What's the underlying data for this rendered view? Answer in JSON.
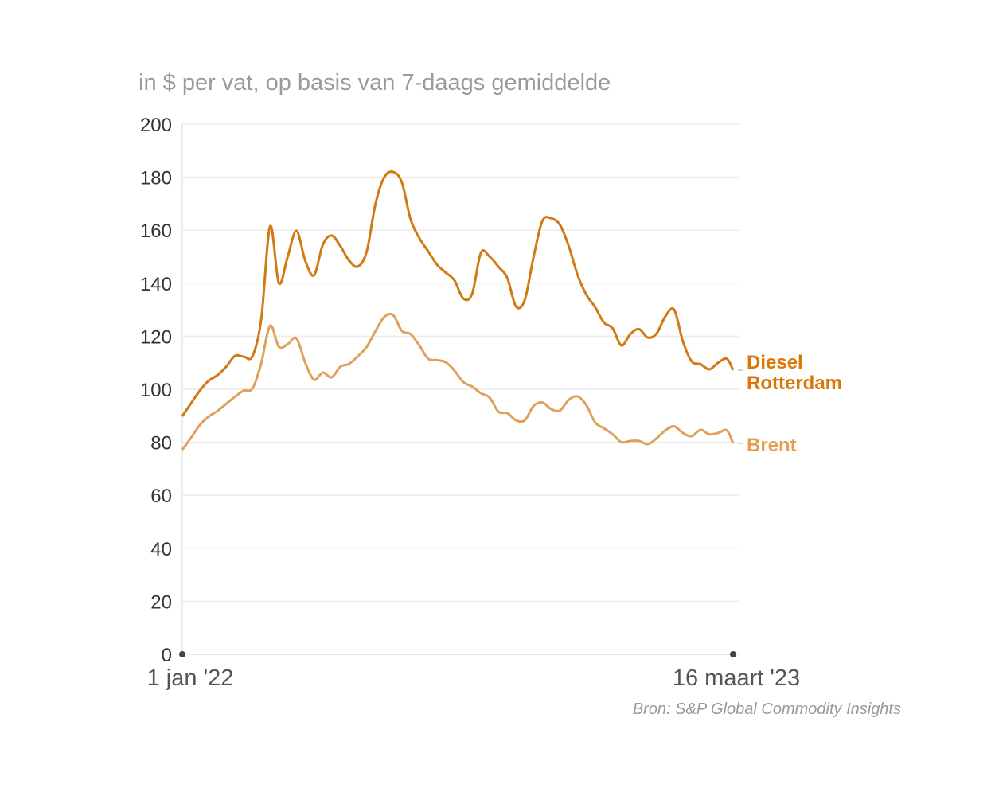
{
  "subtitle": "in $ per vat, op basis van 7-daags gemiddelde",
  "source": "Bron: S&P Global Commodity Insights",
  "chart_data": {
    "type": "line",
    "title": "",
    "subtitle": "in $ per vat, op basis van 7-daags gemiddelde",
    "xlabel": "",
    "ylabel": "",
    "ylim": [
      0,
      200
    ],
    "yticks": [
      0,
      20,
      40,
      60,
      80,
      100,
      120,
      140,
      160,
      180,
      200
    ],
    "xlim": [
      "2022-01-01",
      "2023-03-16"
    ],
    "xtick_labels": [
      "1 jan '22",
      "16 maart '23"
    ],
    "grid": "horizontal",
    "legend": "direct labels at line ends (right)",
    "x": [
      "2022-01-01",
      "2022-01-08",
      "2022-01-15",
      "2022-01-22",
      "2022-01-29",
      "2022-02-05",
      "2022-02-12",
      "2022-02-19",
      "2022-02-26",
      "2022-03-05",
      "2022-03-12",
      "2022-03-19",
      "2022-03-26",
      "2022-04-02",
      "2022-04-09",
      "2022-04-16",
      "2022-04-23",
      "2022-04-30",
      "2022-05-07",
      "2022-05-14",
      "2022-05-21",
      "2022-05-28",
      "2022-06-04",
      "2022-06-11",
      "2022-06-18",
      "2022-06-25",
      "2022-07-02",
      "2022-07-09",
      "2022-07-16",
      "2022-07-23",
      "2022-07-30",
      "2022-08-06",
      "2022-08-13",
      "2022-08-20",
      "2022-08-27",
      "2022-09-03",
      "2022-09-10",
      "2022-09-17",
      "2022-09-24",
      "2022-10-01",
      "2022-10-08",
      "2022-10-15",
      "2022-10-22",
      "2022-10-29",
      "2022-11-05",
      "2022-11-12",
      "2022-11-19",
      "2022-11-26",
      "2022-12-03",
      "2022-12-10",
      "2022-12-17",
      "2022-12-24",
      "2022-12-31",
      "2023-01-07",
      "2023-01-14",
      "2023-01-21",
      "2023-01-28",
      "2023-02-04",
      "2023-02-11",
      "2023-02-18",
      "2023-02-25",
      "2023-03-04",
      "2023-03-11",
      "2023-03-16"
    ],
    "series": [
      {
        "name": "Diesel Rotterdam",
        "label_lines": [
          "Diesel",
          "Rotterdam"
        ],
        "color": "#d27a12",
        "label_color": "#d9770a",
        "values": [
          89.8,
          94.7,
          99.5,
          103.2,
          105.3,
          108.5,
          112.6,
          112.3,
          112.5,
          126.7,
          161.5,
          140,
          150,
          159.8,
          148.5,
          143,
          154.5,
          158,
          154,
          148.5,
          146.3,
          152,
          170,
          180,
          182,
          178,
          164,
          157,
          152,
          147,
          144,
          141,
          134.2,
          136,
          151.5,
          150,
          146.2,
          142,
          131.2,
          133.8,
          150,
          163.5,
          164.5,
          162,
          154,
          143.2,
          135.7,
          131,
          125.2,
          123,
          116.5,
          120.8,
          122.7,
          119.5,
          121,
          127.5,
          130,
          118,
          110.5,
          109.5,
          107.5,
          110,
          111.5,
          107.2
        ]
      },
      {
        "name": "Brent",
        "label_lines": [
          "Brent"
        ],
        "color": "#dfa05a",
        "label_color": "#e39f52",
        "values": [
          77.2,
          81.7,
          86.5,
          89.7,
          91.8,
          94.5,
          97.2,
          99.5,
          100.3,
          110,
          124,
          116,
          117,
          119.2,
          110,
          103.6,
          106.3,
          104.5,
          108.5,
          109.6,
          112.5,
          116,
          122,
          127.3,
          128,
          122,
          120.8,
          116.5,
          111.5,
          111,
          110.2,
          107,
          102.7,
          101,
          98.5,
          96.8,
          91.5,
          91,
          88.3,
          88.3,
          93.7,
          95,
          92.5,
          92,
          96,
          97.3,
          94,
          87.5,
          85.3,
          83,
          80,
          80.5,
          80.5,
          79.3,
          81.5,
          84.5,
          86,
          83.5,
          82.3,
          84.7,
          83,
          83.5,
          84.5,
          79.6
        ]
      }
    ]
  }
}
